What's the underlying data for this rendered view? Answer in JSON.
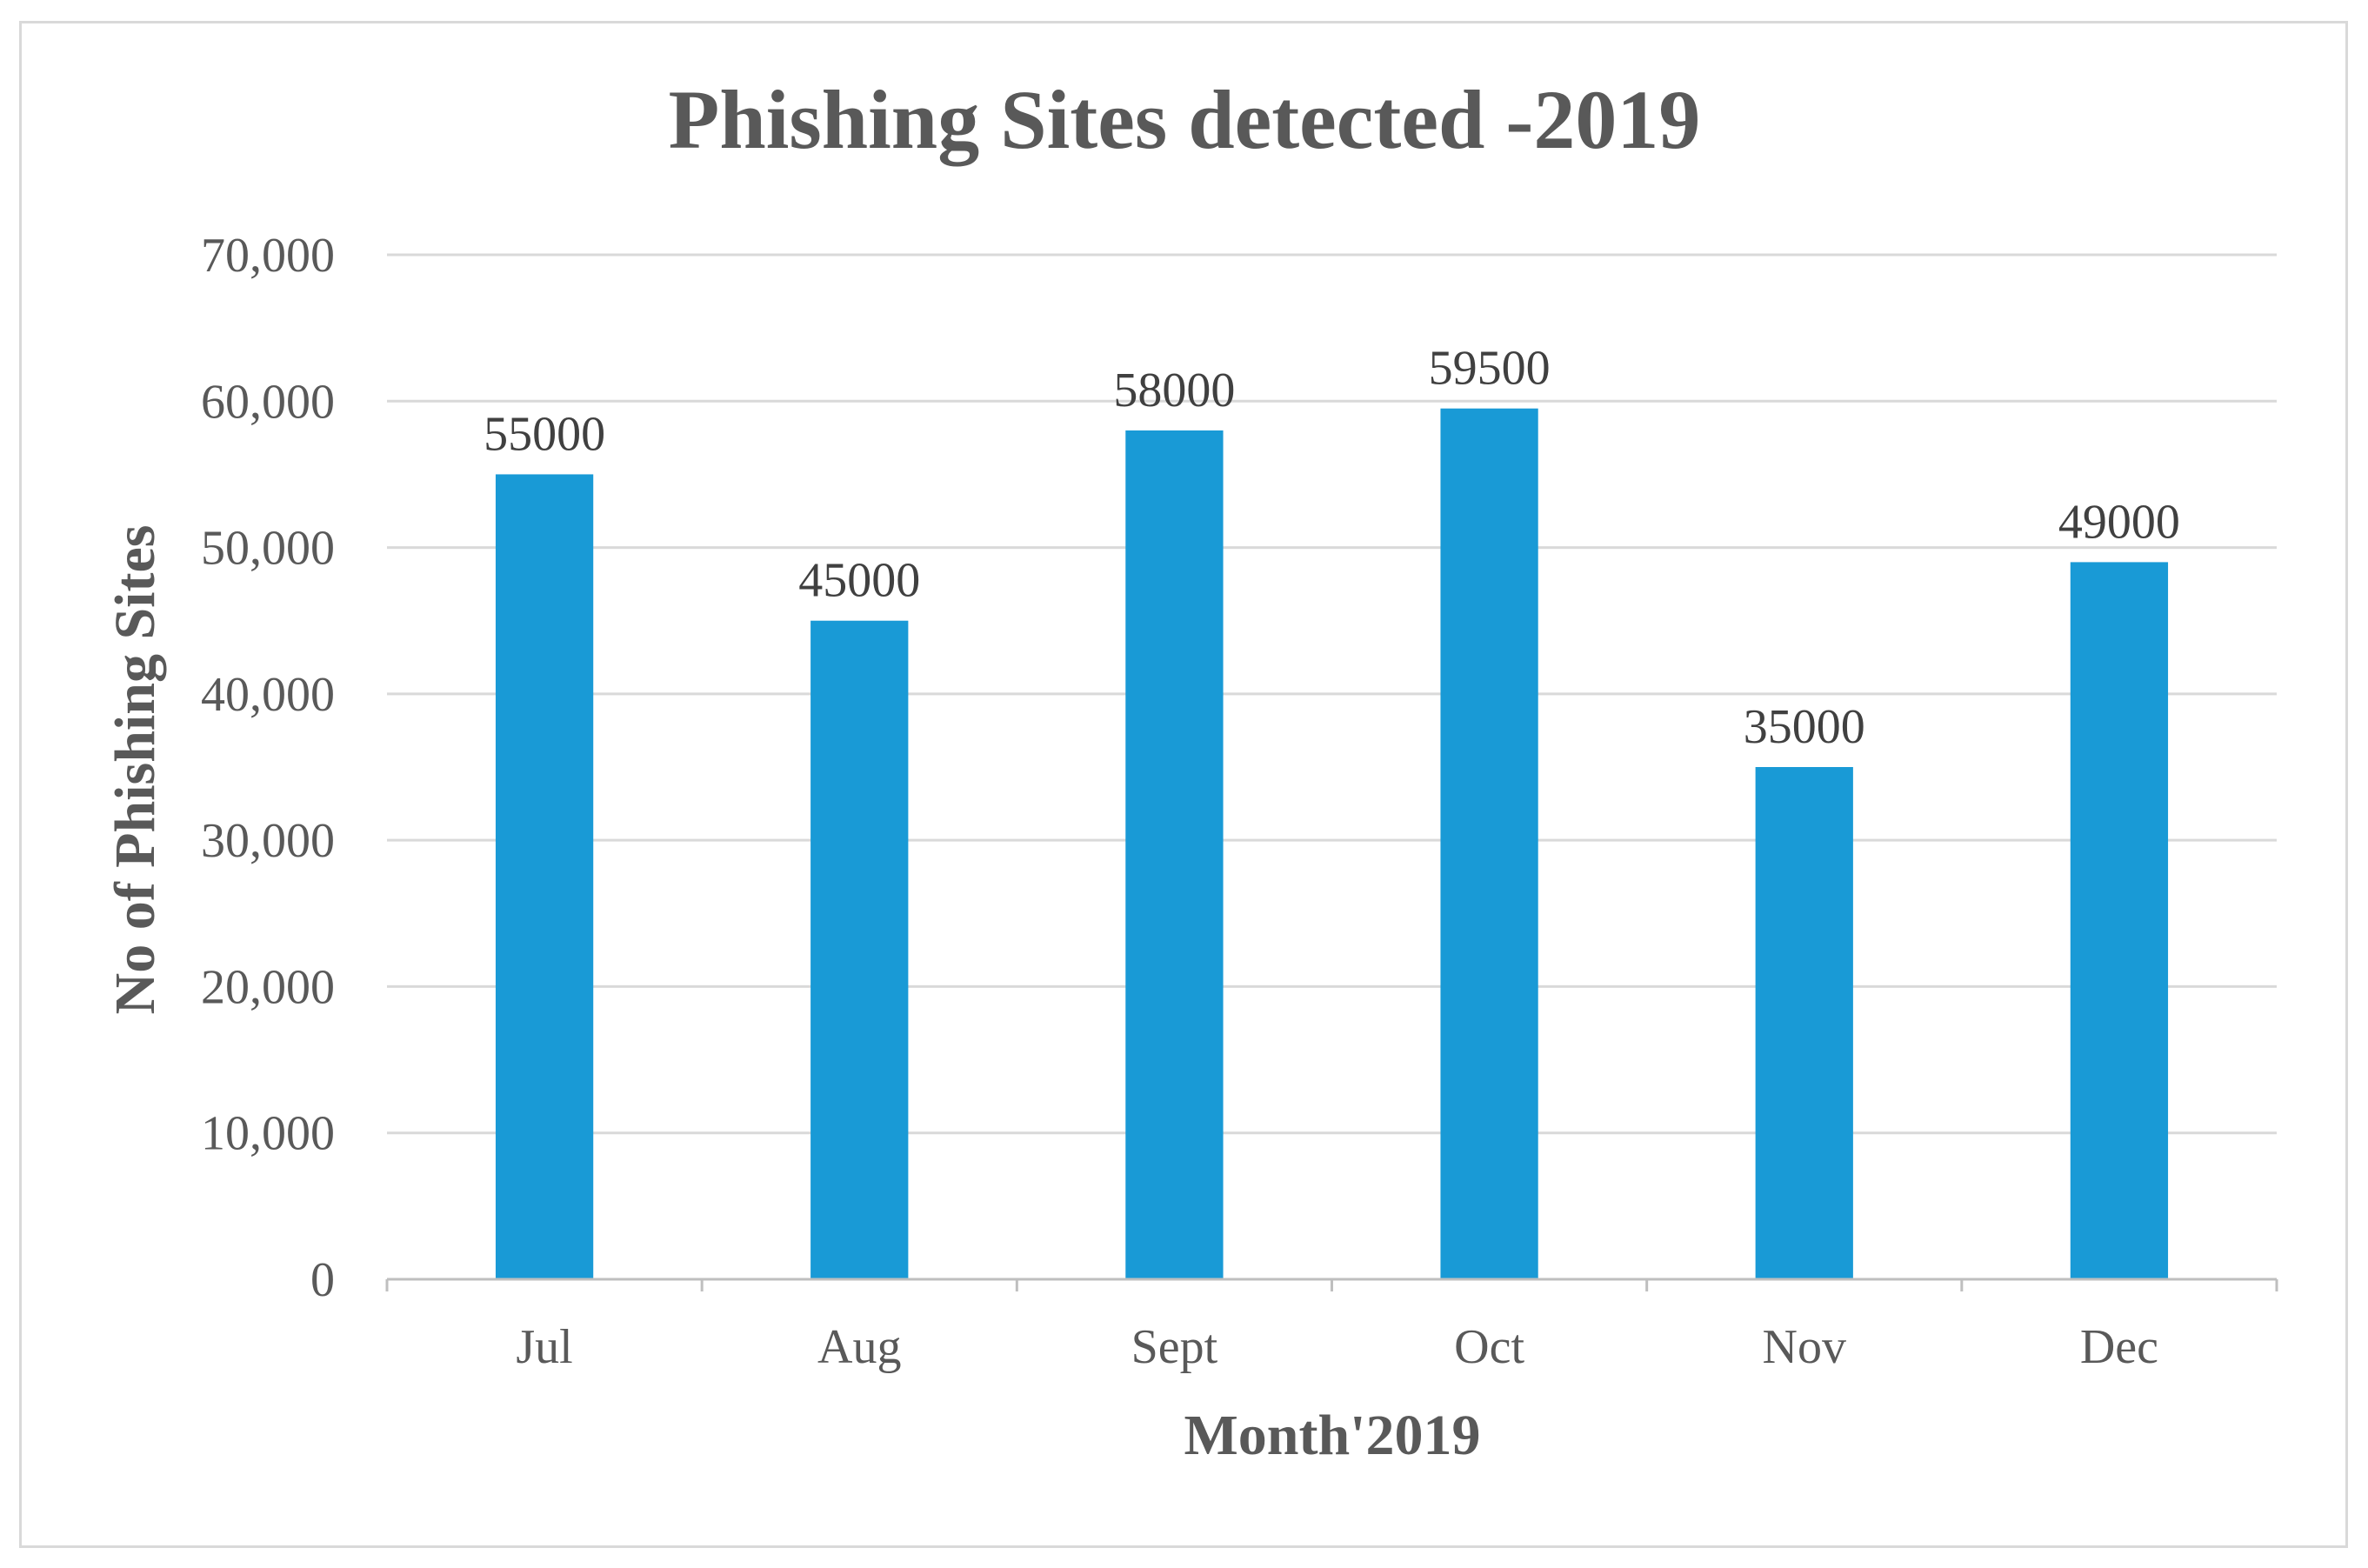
{
  "chart_data": {
    "type": "bar",
    "title": "Phishing Sites detected -2019",
    "xlabel": "Month'2019",
    "ylabel": "No of Phishing Sites",
    "categories": [
      "Jul",
      "Aug",
      "Sept",
      "Oct",
      "Nov",
      "Dec"
    ],
    "values": [
      55000,
      45000,
      58000,
      59500,
      35000,
      49000
    ],
    "data_labels": [
      "55000",
      "45000",
      "58000",
      "59500",
      "35000",
      "49000"
    ],
    "ylim": [
      0,
      70000
    ],
    "yticks": [
      0,
      10000,
      20000,
      30000,
      40000,
      50000,
      60000,
      70000
    ],
    "ytick_labels": [
      "0",
      "10,000",
      "20,000",
      "30,000",
      "40,000",
      "50,000",
      "60,000",
      "70,000"
    ],
    "grid": true,
    "legend": "none",
    "colors": {
      "bar": "#199ad6",
      "grid": "#d9d9d9",
      "axis": "#bfbfbf",
      "text": "#595959"
    }
  }
}
